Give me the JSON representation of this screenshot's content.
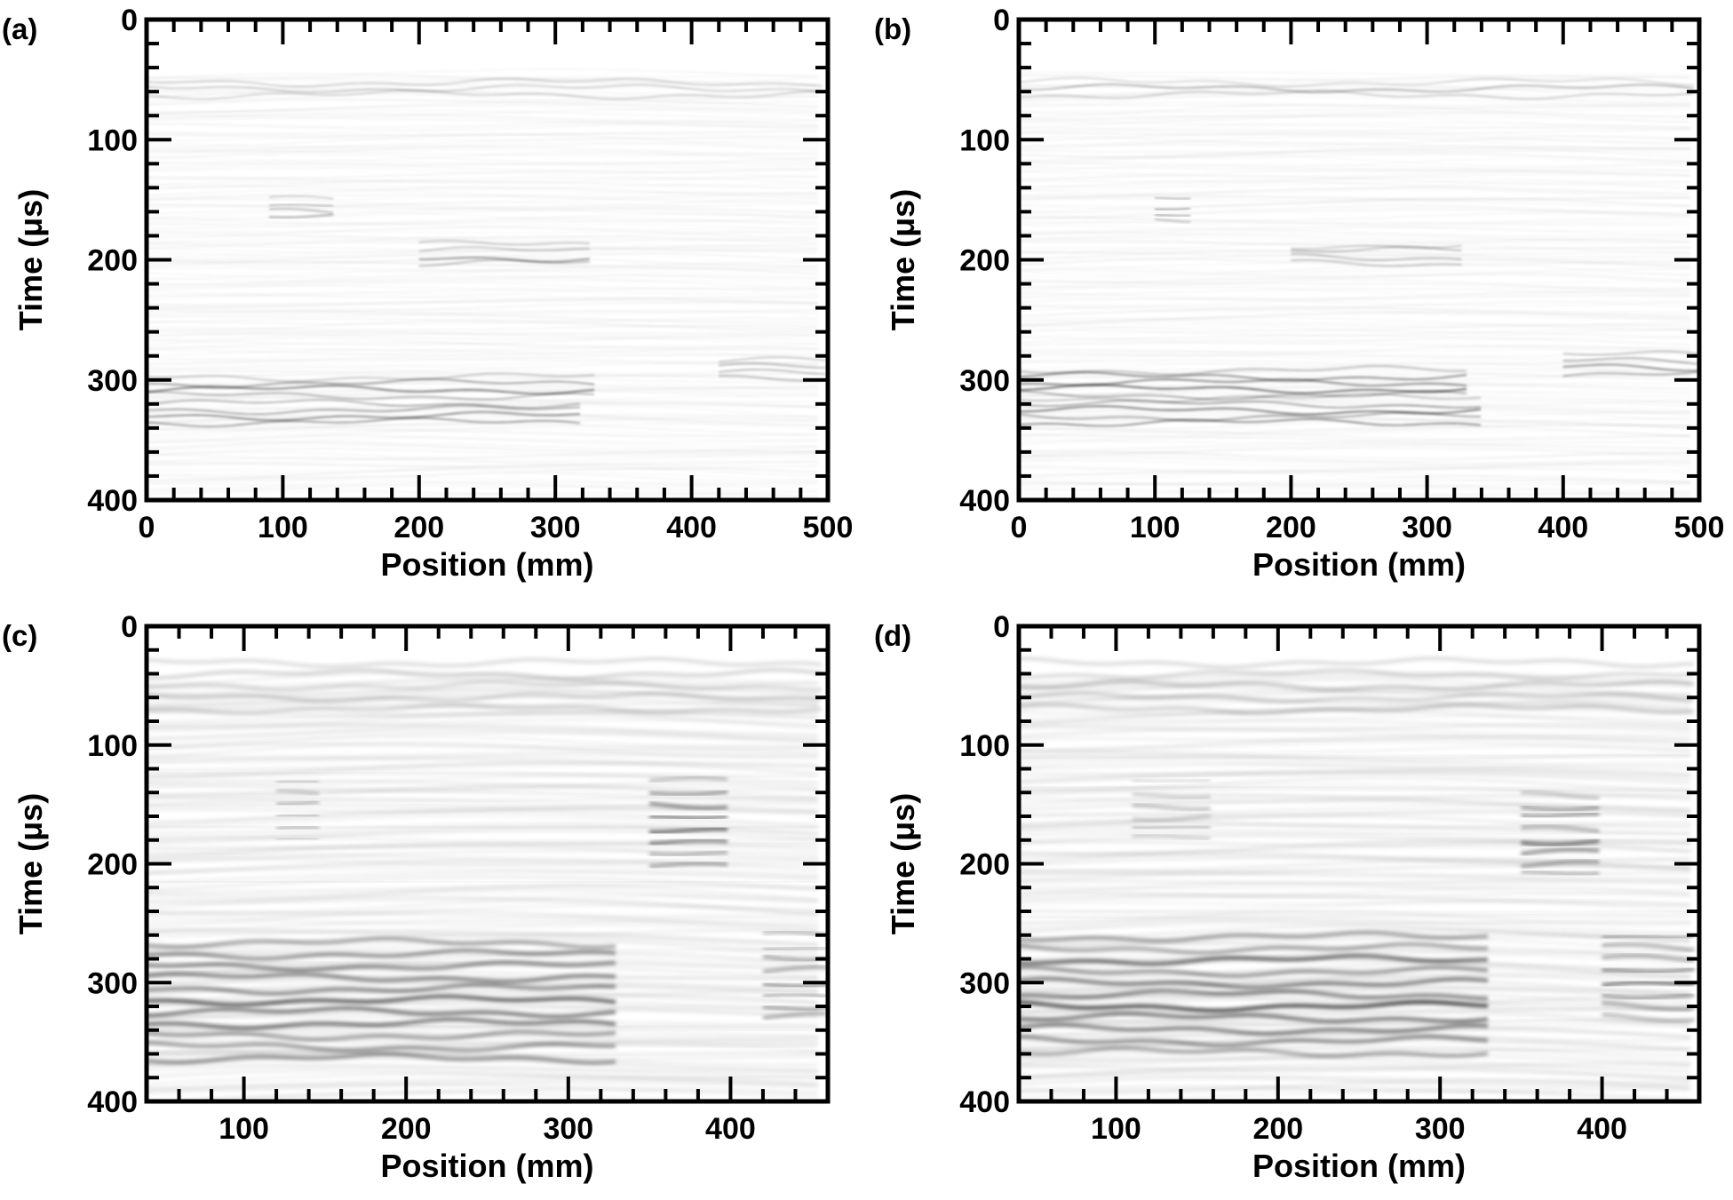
{
  "chart_data": [
    {
      "type": "heatmap",
      "panel_label": "(a)",
      "xlabel": "Position (mm)",
      "ylabel": "Time (μs)",
      "xlim": [
        0,
        500
      ],
      "ylim": [
        400,
        0
      ],
      "xticks": [
        0,
        100,
        200,
        300,
        400,
        500
      ],
      "yticks": [
        0,
        100,
        200,
        300,
        400
      ],
      "colormap": "grayscale",
      "features": [
        {
          "t": 60,
          "x": [
            0,
            500
          ],
          "strength": 0.35
        },
        {
          "t": 160,
          "x": [
            90,
            140
          ],
          "strength": 0.5
        },
        {
          "t": 198,
          "x": [
            200,
            330
          ],
          "strength": 0.45
        },
        {
          "t": 308,
          "x": [
            0,
            330
          ],
          "strength": 0.6
        },
        {
          "t": 330,
          "x": [
            0,
            320
          ],
          "strength": 0.55
        },
        {
          "t": 295,
          "x": [
            420,
            500
          ],
          "strength": 0.45
        }
      ]
    },
    {
      "type": "heatmap",
      "panel_label": "(b)",
      "xlabel": "Position (mm)",
      "ylabel": "Time (μs)",
      "xlim": [
        0,
        500
      ],
      "ylim": [
        400,
        0
      ],
      "xticks": [
        0,
        100,
        200,
        300,
        400,
        500
      ],
      "yticks": [
        0,
        100,
        200,
        300,
        400
      ],
      "colormap": "grayscale",
      "features": [
        {
          "t": 60,
          "x": [
            0,
            500
          ],
          "strength": 0.35
        },
        {
          "t": 160,
          "x": [
            100,
            130
          ],
          "strength": 0.5
        },
        {
          "t": 198,
          "x": [
            200,
            330
          ],
          "strength": 0.45
        },
        {
          "t": 305,
          "x": [
            0,
            330
          ],
          "strength": 0.7
        },
        {
          "t": 328,
          "x": [
            0,
            340
          ],
          "strength": 0.65
        },
        {
          "t": 290,
          "x": [
            400,
            500
          ],
          "strength": 0.5
        }
      ]
    },
    {
      "type": "heatmap",
      "panel_label": "(c)",
      "xlabel": "Position (mm)",
      "ylabel": "Time (μs)",
      "xlim": [
        40,
        460
      ],
      "ylim": [
        400,
        0
      ],
      "xticks": [
        100,
        200,
        300,
        400
      ],
      "yticks": [
        0,
        100,
        200,
        300,
        400
      ],
      "colormap": "grayscale",
      "features": [
        {
          "t": 55,
          "x": [
            40,
            460
          ],
          "strength": 0.25
        },
        {
          "t": 160,
          "x": [
            120,
            150
          ],
          "strength": 0.35
        },
        {
          "t": 170,
          "x": [
            350,
            400
          ],
          "strength": 0.6
        },
        {
          "t": 320,
          "x": [
            40,
            330
          ],
          "strength": 0.85
        },
        {
          "t": 300,
          "x": [
            420,
            460
          ],
          "strength": 0.55
        }
      ]
    },
    {
      "type": "heatmap",
      "panel_label": "(d)",
      "xlabel": "Position (mm)",
      "ylabel": "Time (μs)",
      "xlim": [
        40,
        460
      ],
      "ylim": [
        400,
        0
      ],
      "xticks": [
        100,
        200,
        300,
        400
      ],
      "yticks": [
        0,
        100,
        200,
        300,
        400
      ],
      "colormap": "grayscale",
      "features": [
        {
          "t": 55,
          "x": [
            40,
            460
          ],
          "strength": 0.25
        },
        {
          "t": 160,
          "x": [
            110,
            160
          ],
          "strength": 0.3
        },
        {
          "t": 180,
          "x": [
            350,
            400
          ],
          "strength": 0.55
        },
        {
          "t": 315,
          "x": [
            40,
            330
          ],
          "strength": 0.85
        },
        {
          "t": 300,
          "x": [
            400,
            460
          ],
          "strength": 0.55
        }
      ]
    }
  ]
}
